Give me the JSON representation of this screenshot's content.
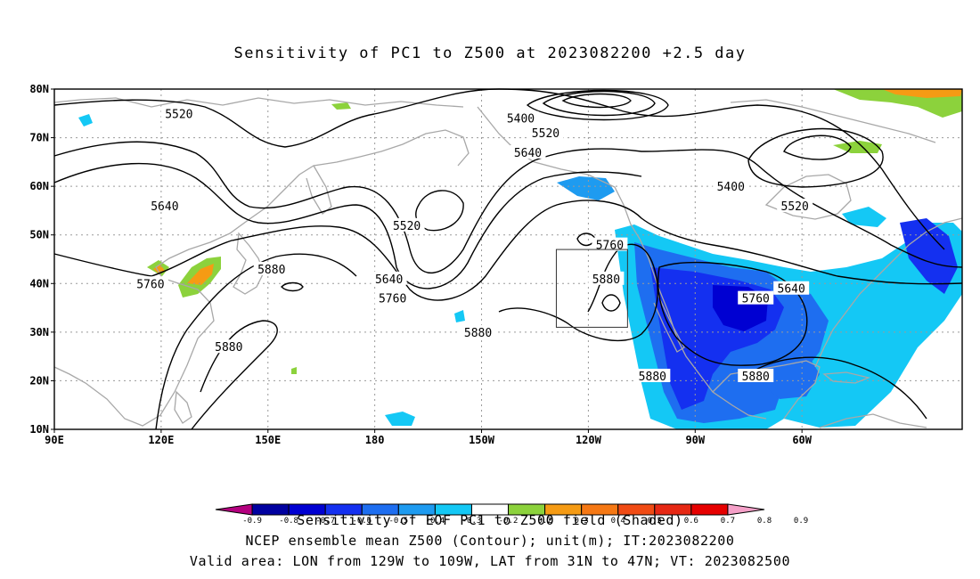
{
  "title": "Sensitivity of PC1 to Z500 at 2023082200 +2.5 day",
  "axes": {
    "lat_labels": [
      "80N",
      "70N",
      "60N",
      "50N",
      "40N",
      "30N",
      "20N",
      "10N"
    ],
    "lon_labels": [
      "90E",
      "120E",
      "150E",
      "180",
      "150W",
      "120W",
      "90W",
      "60W"
    ]
  },
  "contours": {
    "unit": "m",
    "labels": [
      {
        "text": "5520",
        "lon": 125,
        "lat": 75
      },
      {
        "text": "5400",
        "lon": -139,
        "lat": 74
      },
      {
        "text": "5520",
        "lon": -132,
        "lat": 71
      },
      {
        "text": "5640",
        "lon": -137,
        "lat": 67
      },
      {
        "text": "5400",
        "lon": -80,
        "lat": 60
      },
      {
        "text": "5520",
        "lon": -62,
        "lat": 56
      },
      {
        "text": "5640",
        "lon": 121,
        "lat": 56
      },
      {
        "text": "5520",
        "lon": -171,
        "lat": 52
      },
      {
        "text": "5760",
        "lon": -114,
        "lat": 48
      },
      {
        "text": "5880",
        "lon": 151,
        "lat": 43
      },
      {
        "text": "5880",
        "lon": -115,
        "lat": 41
      },
      {
        "text": "5640",
        "lon": -176,
        "lat": 41
      },
      {
        "text": "5760",
        "lon": 117,
        "lat": 40
      },
      {
        "text": "5640",
        "lon": -63,
        "lat": 39
      },
      {
        "text": "5760",
        "lon": -175,
        "lat": 37
      },
      {
        "text": "5760",
        "lon": -73,
        "lat": 37
      },
      {
        "text": "5880",
        "lon": -151,
        "lat": 30
      },
      {
        "text": "5880",
        "lon": 139,
        "lat": 27
      },
      {
        "text": "5880",
        "lon": -102,
        "lat": 21
      },
      {
        "text": "5880",
        "lon": -73,
        "lat": 21
      }
    ]
  },
  "valid_area": {
    "lon_min": -129,
    "lon_max": -109,
    "lat_min": 31,
    "lat_max": 47
  },
  "colorbar": {
    "labels": [
      "-0.9",
      "-0.8",
      "-0.7",
      "-0.6",
      "-0.5",
      "-0.4",
      "-0.3",
      "-0.2",
      "0.2",
      "0.3",
      "0.4",
      "0.5",
      "0.6",
      "0.7",
      "0.8",
      "0.9"
    ],
    "colors": [
      "#b4007f",
      "#0000a0",
      "#0000d2",
      "#1430f0",
      "#1e6ef0",
      "#1e9bf0",
      "#14c8f5",
      "#ffffff",
      "#8cd23c",
      "#f59b14",
      "#f57814",
      "#f04b14",
      "#e62814",
      "#e60000",
      "#f5a0c8"
    ]
  },
  "footer": {
    "line1": "Sensitivity of EOF PC1 to Z500 field (Shaded)",
    "line2": "NCEP ensemble mean Z500 (Contour); unit(m); IT:2023082200",
    "line3": "Valid area: LON from 129W to 109W, LAT from 31N to 47N; VT: 2023082500"
  }
}
